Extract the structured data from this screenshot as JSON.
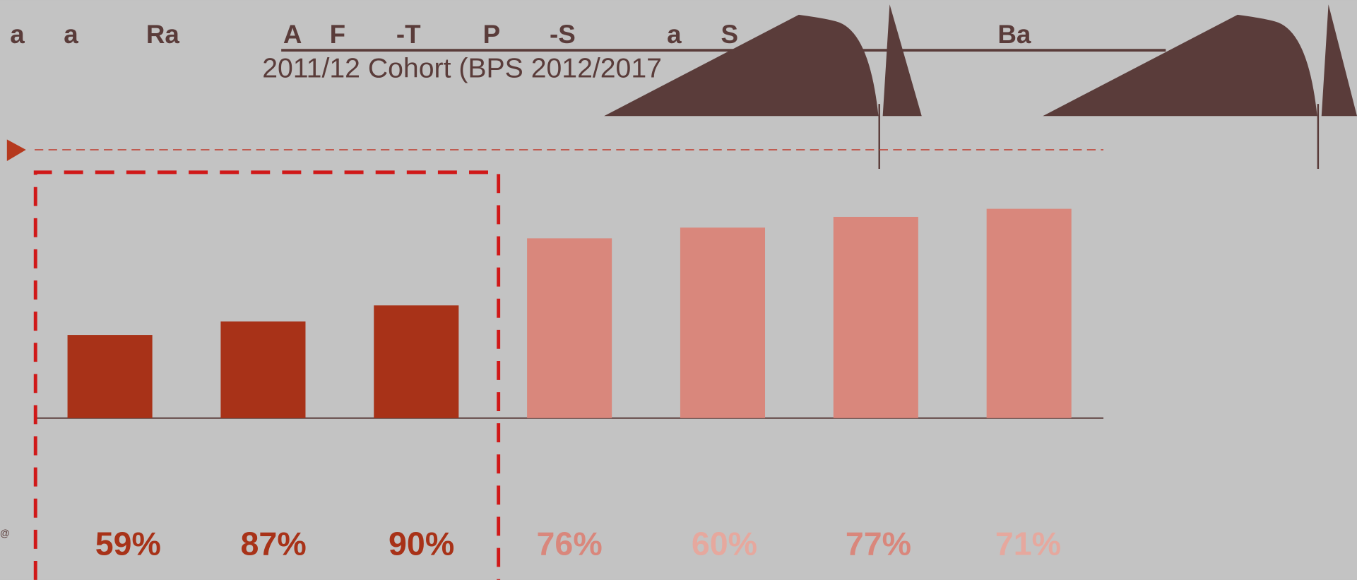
{
  "header_words": [
    "a",
    "a",
    "Ra",
    "A",
    "F",
    "-T",
    "P",
    "-S",
    "a",
    "S",
    "Ba"
  ],
  "subtitle": "2011/12 Cohort (BPS 2012/2017",
  "footnote_mark": "@",
  "chart_data": {
    "type": "bar",
    "values": [
      31,
      36,
      42,
      67,
      71,
      75,
      78
    ],
    "colors": [
      "#a83218",
      "#a83218",
      "#a83218",
      "#d9877c",
      "#d9877c",
      "#d9877c",
      "#d9877c"
    ],
    "ylim": [
      0,
      100
    ],
    "annotations": [
      "59%",
      "87%",
      "90%",
      "76%",
      "60%",
      "77%",
      "71%"
    ],
    "annotation_colors": [
      "#a83218",
      "#a83218",
      "#a83218",
      "#d9877c",
      "#e6a89e",
      "#d9877c",
      "#e6a89e"
    ]
  }
}
